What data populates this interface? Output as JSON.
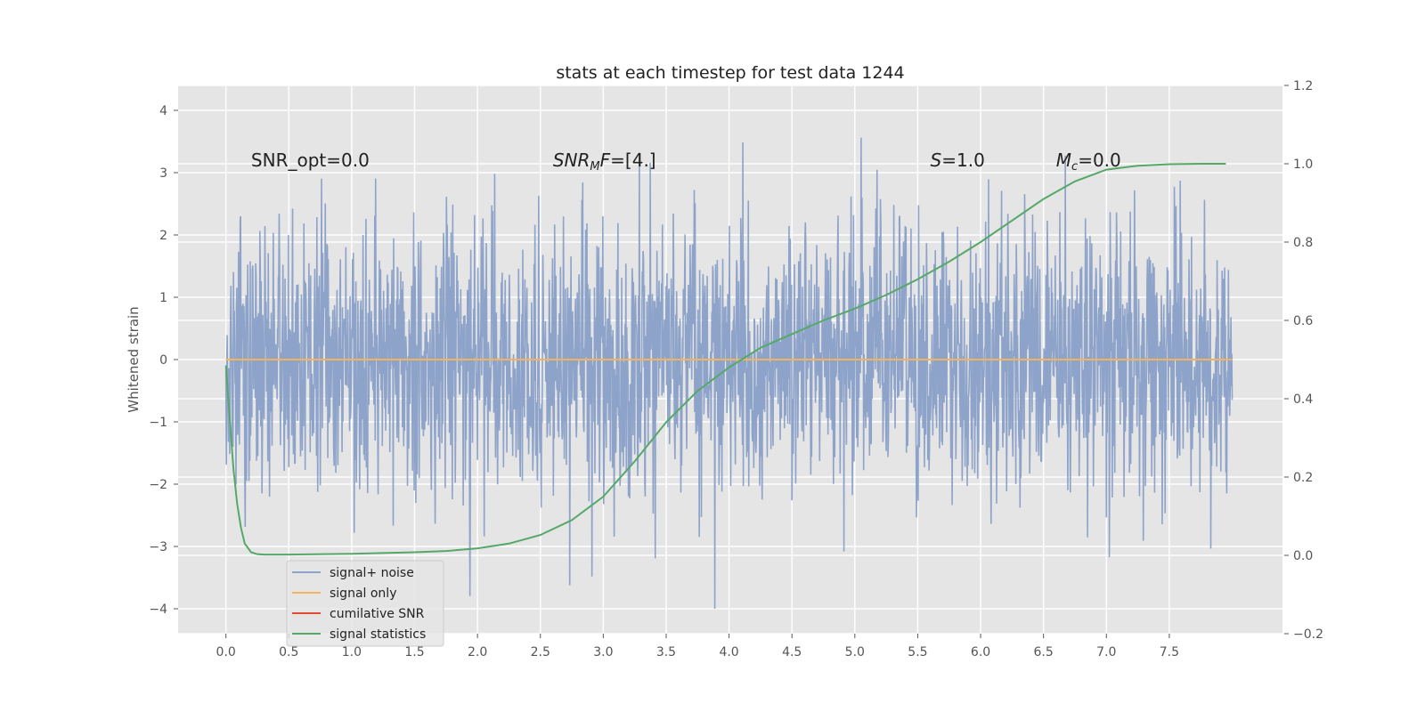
{
  "chart_data": {
    "type": "line",
    "title": "stats at each timestep for test data 1244",
    "ylabel": "Whitened strain",
    "xlim": [
      -0.38,
      8.4
    ],
    "ylim": [
      -4.4,
      4.4
    ],
    "ylim_right": [
      -0.2,
      1.2
    ],
    "x_ticks": [
      "0.0",
      "0.5",
      "1.0",
      "1.5",
      "2.0",
      "2.5",
      "3.0",
      "3.5",
      "4.0",
      "4.5",
      "5.0",
      "5.5",
      "6.0",
      "6.5",
      "7.0",
      "7.5"
    ],
    "y_ticks": [
      "4",
      "3",
      "2",
      "1",
      "0",
      "−1",
      "−2",
      "−3",
      "−4"
    ],
    "y_ticks_right": [
      "1.2",
      "1.0",
      "0.8",
      "0.6",
      "0.4",
      "0.2",
      "0.0",
      "−0.2"
    ],
    "grid": true,
    "legend_position": "lower-left",
    "annotations": [
      {
        "text": "SNR_opt=0.0",
        "x": 0.2,
        "y": 3.2
      },
      {
        "text": "SNR_MF=[4.]",
        "x": 2.6,
        "y": 3.2
      },
      {
        "text": "S=1.0",
        "x": 5.6,
        "y": 3.2
      },
      {
        "text": "M_c=0.0",
        "x": 6.6,
        "y": 3.2
      }
    ],
    "series": [
      {
        "name": "signal+ noise",
        "color": "#8ea3c9",
        "axis": "left",
        "x_range": [
          0.0,
          8.0
        ],
        "amplitude_envelope": {
          "typical_range": [
            -2.0,
            2.0
          ],
          "max": 4.0,
          "min": -4.0
        }
      },
      {
        "name": "signal only",
        "color": "#f0b45a",
        "axis": "left",
        "x": [
          0.0,
          8.0
        ],
        "y": [
          0.0,
          0.0
        ]
      },
      {
        "name": "cumilative SNR",
        "color": "#e24a33",
        "axis": "right",
        "x": [],
        "y": []
      },
      {
        "name": "signal statistics",
        "color": "#55a868",
        "axis": "right",
        "x": [
          0.0,
          0.03,
          0.06,
          0.09,
          0.12,
          0.15,
          0.2,
          0.25,
          0.3,
          0.5,
          1.0,
          1.5,
          1.75,
          2.0,
          2.25,
          2.5,
          2.75,
          3.0,
          3.25,
          3.5,
          3.75,
          4.0,
          4.25,
          4.5,
          4.75,
          5.0,
          5.25,
          5.5,
          5.75,
          6.0,
          6.25,
          6.5,
          6.75,
          7.0,
          7.25,
          7.5,
          7.75,
          7.95
        ],
        "y": [
          0.485,
          0.35,
          0.22,
          0.13,
          0.07,
          0.03,
          0.008,
          0.003,
          0.002,
          0.002,
          0.004,
          0.008,
          0.011,
          0.018,
          0.03,
          0.052,
          0.09,
          0.15,
          0.24,
          0.34,
          0.42,
          0.48,
          0.53,
          0.565,
          0.6,
          0.63,
          0.665,
          0.705,
          0.75,
          0.8,
          0.855,
          0.91,
          0.955,
          0.985,
          0.995,
          0.999,
          1.0,
          1.0
        ]
      }
    ]
  }
}
